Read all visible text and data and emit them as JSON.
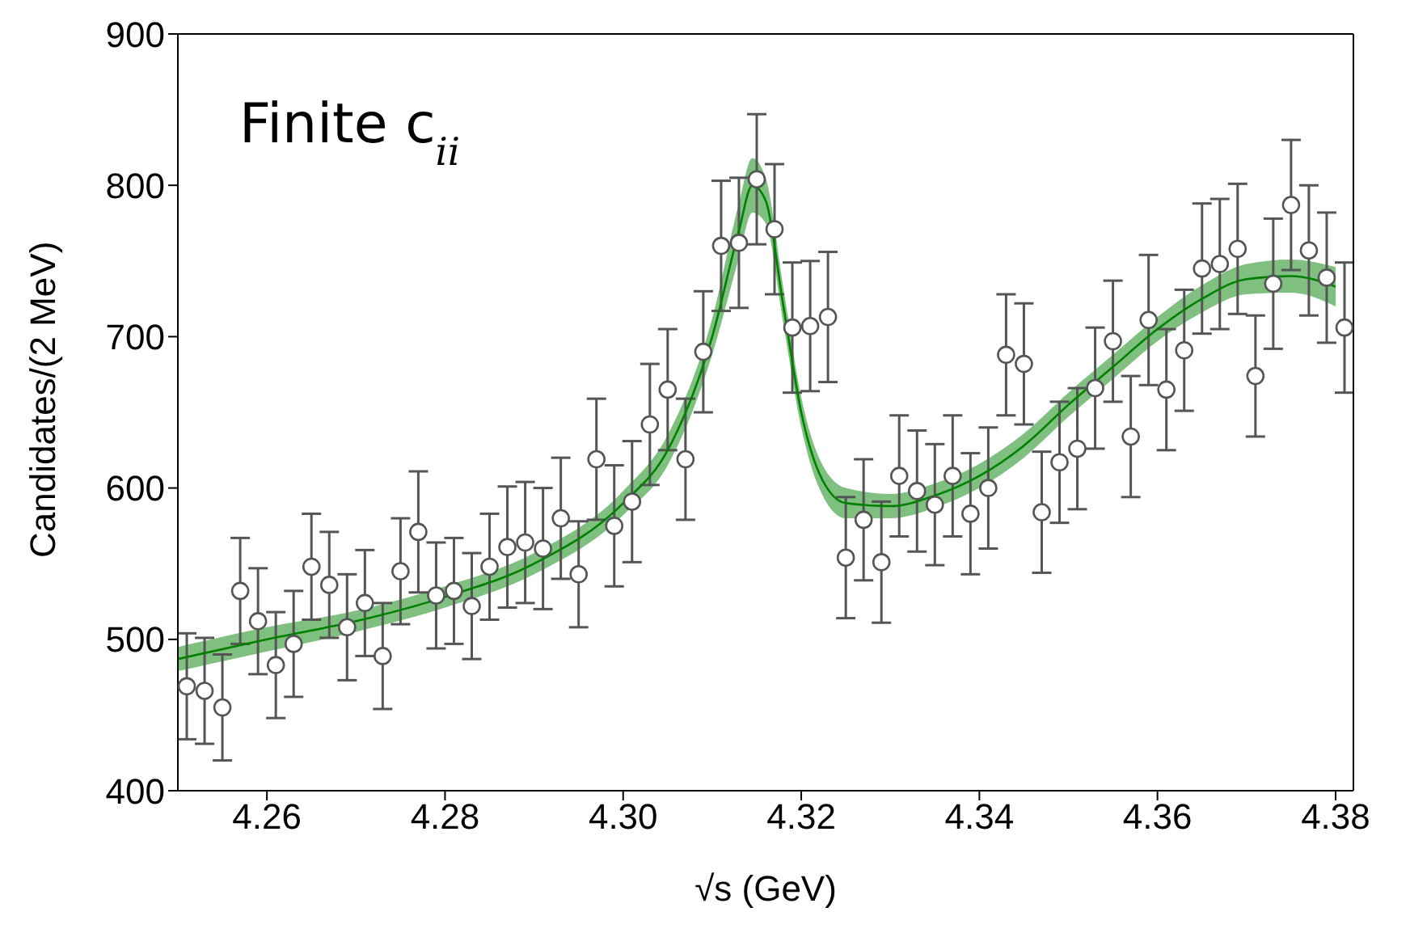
{
  "chart_data": {
    "type": "scatter",
    "xlabel": "√s (GeV)",
    "ylabel": "Candidates/(2 MeV)",
    "annotations": [
      "Finite c$_{ii}$"
    ],
    "xlim": [
      4.25,
      4.382
    ],
    "xticks": [
      {
        "value": 4.26,
        "label": "4.26"
      },
      {
        "value": 4.28,
        "label": "4.28"
      },
      {
        "value": 4.3,
        "label": "4.30"
      },
      {
        "value": 4.32,
        "label": "4.32"
      },
      {
        "value": 4.34,
        "label": "4.34"
      },
      {
        "value": 4.36,
        "label": "4.36"
      },
      {
        "value": 4.38,
        "label": "4.38"
      }
    ],
    "ylim": [
      400,
      900
    ],
    "yticks": [
      400,
      500,
      600,
      700,
      800,
      900
    ],
    "grid": false,
    "x": [
      4.251,
      4.253,
      4.255,
      4.257,
      4.259,
      4.261,
      4.263,
      4.265,
      4.267,
      4.269,
      4.271,
      4.273,
      4.275,
      4.277,
      4.279,
      4.281,
      4.283,
      4.285,
      4.287,
      4.289,
      4.291,
      4.293,
      4.295,
      4.297,
      4.299,
      4.301,
      4.303,
      4.305,
      4.307,
      4.309,
      4.311,
      4.313,
      4.315,
      4.317,
      4.319,
      4.321,
      4.323,
      4.325,
      4.327,
      4.329,
      4.331,
      4.333,
      4.335,
      4.337,
      4.339,
      4.341,
      4.343,
      4.345,
      4.347,
      4.349,
      4.351,
      4.353,
      4.355,
      4.357,
      4.359,
      4.361,
      4.363,
      4.365,
      4.367,
      4.369,
      4.371,
      4.373,
      4.375,
      4.377,
      4.379,
      4.381
    ],
    "series": [
      {
        "color": "#555555",
        "marker": "circle",
        "values": [
          469,
          466,
          455,
          532,
          512,
          483,
          497,
          548,
          536,
          508,
          524,
          489,
          545,
          571,
          529,
          532,
          522,
          548,
          561,
          564,
          560,
          580,
          543,
          619,
          575,
          591,
          642,
          665,
          619,
          690,
          760,
          762,
          804,
          771,
          706,
          707,
          713,
          554,
          579,
          551,
          608,
          598,
          589,
          608,
          583,
          600,
          688,
          682,
          584,
          617,
          626,
          666,
          697,
          634,
          711,
          665,
          691,
          745,
          748,
          758,
          674,
          735,
          787,
          757,
          739,
          706
        ],
        "errors": [
          35,
          35,
          35,
          35,
          35,
          35,
          35,
          35,
          35,
          35,
          35,
          35,
          35,
          40,
          35,
          35,
          35,
          35,
          40,
          40,
          40,
          40,
          35,
          40,
          40,
          40,
          40,
          40,
          40,
          40,
          43,
          43,
          43,
          43,
          43,
          43,
          43,
          40,
          40,
          40,
          40,
          40,
          40,
          40,
          40,
          40,
          40,
          40,
          40,
          40,
          40,
          40,
          40,
          40,
          43,
          40,
          40,
          43,
          43,
          43,
          40,
          43,
          43,
          43,
          43,
          43
        ]
      },
      {
        "type": "line",
        "color": "#008000",
        "marker": "none",
        "line_style": "solid",
        "x": [
          4.25,
          4.26,
          4.27,
          4.28,
          4.29,
          4.3,
          4.305,
          4.31,
          4.313,
          4.3145,
          4.316,
          4.318,
          4.32,
          4.322,
          4.325,
          4.33,
          4.335,
          4.34,
          4.345,
          4.35,
          4.355,
          4.36,
          4.365,
          4.37,
          4.375,
          4.38
        ],
        "values": [
          487,
          500,
          512,
          528,
          550,
          590,
          625,
          700,
          770,
          800,
          790,
          720,
          650,
          610,
          590,
          588,
          595,
          608,
          628,
          655,
          680,
          705,
          725,
          738,
          740,
          733
        ],
        "lower": [
          479,
          492,
          505,
          521,
          543,
          582,
          615,
          688,
          752,
          782,
          775,
          708,
          640,
          600,
          580,
          580,
          587,
          600,
          620,
          647,
          672,
          697,
          716,
          728,
          729,
          720
        ],
        "upper": [
          495,
          508,
          519,
          535,
          557,
          598,
          635,
          712,
          788,
          818,
          805,
          732,
          660,
          620,
          600,
          596,
          603,
          616,
          636,
          663,
          688,
          713,
          734,
          748,
          751,
          746
        ]
      }
    ]
  }
}
